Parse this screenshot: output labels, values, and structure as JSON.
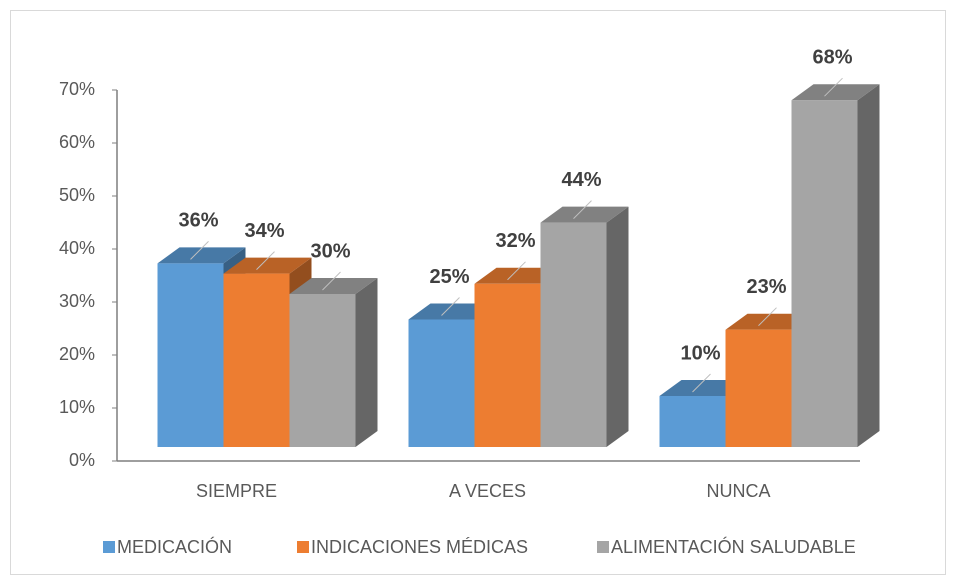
{
  "chart_data": {
    "type": "bar3d",
    "categories": [
      "SIEMPRE",
      "A VECES",
      "NUNCA"
    ],
    "series": [
      {
        "name": "MEDICACIÓN",
        "color": "#5b9bd5",
        "values": [
          36,
          25,
          10
        ],
        "value_labels": [
          "36%",
          "25%",
          "10%"
        ]
      },
      {
        "name": "INDICACIONES MÉDICAS",
        "color": "#ed7d31",
        "values": [
          34,
          32,
          23
        ],
        "value_labels": [
          "34%",
          "32%",
          "23%"
        ]
      },
      {
        "name": "ALIMENTACIÓN SALUDABLE",
        "color": "#a5a5a5",
        "values": [
          30,
          44,
          68
        ],
        "value_labels": [
          "30%",
          "44%",
          "68%"
        ]
      }
    ],
    "ylim": [
      0,
      70
    ],
    "yticks": [
      {
        "value": 0,
        "label": "0%"
      },
      {
        "value": 10,
        "label": "10%"
      },
      {
        "value": 20,
        "label": "20%"
      },
      {
        "value": 30,
        "label": "30%"
      },
      {
        "value": 40,
        "label": "40%"
      },
      {
        "value": 50,
        "label": "50%"
      },
      {
        "value": 60,
        "label": "60%"
      },
      {
        "value": 70,
        "label": "70%"
      }
    ],
    "legend": "bottom"
  }
}
